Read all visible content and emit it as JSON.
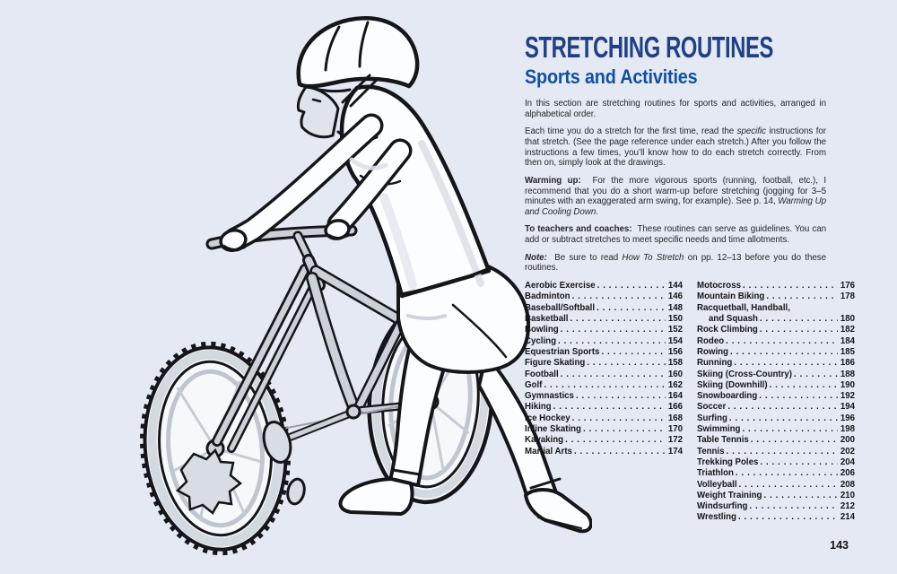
{
  "theme": {
    "background": "#e5e9f3",
    "title_color": "#1d4086",
    "subtitle_color": "#10509f",
    "body_text_color": "#26262b",
    "index_text_color": "#15151a",
    "line_art_color": "#15151a",
    "page_number_color": "#111114"
  },
  "page": {
    "number": "143"
  },
  "header": {
    "title": "STRETCHING ROUTINES",
    "subtitle": "Sports and Activities"
  },
  "intro": {
    "paragraphs": [
      {
        "runs": [
          {
            "t": "In this section are stretching routines for sports and activities, arranged in alphabetical order."
          }
        ]
      },
      {
        "runs": [
          {
            "t": "Each time you do a stretch for the first time, read the "
          },
          {
            "t": "specific",
            "style": "italic"
          },
          {
            "t": " instructions for that stretch. (See the page reference under each stretch.) After you follow the instructions a few times, you’ll know how to do each stretch correctly. From then on, simply look at the drawings."
          }
        ]
      },
      {
        "runs": [
          {
            "t": "Warming up:",
            "style": "bold"
          },
          {
            "t": "  For the more vigorous sports (running, football, etc.), I recommend that you do a short warm-up before stretching (jogging for 3–5 minutes with an exaggerated arm swing, for example). See p. 14, "
          },
          {
            "t": "Warming Up and Cooling Down",
            "style": "italic"
          },
          {
            "t": "."
          }
        ]
      },
      {
        "runs": [
          {
            "t": "To teachers and coaches:",
            "style": "bold"
          },
          {
            "t": "  These routines can serve as guidelines. You can add or subtract stretches to meet specific needs and time allotments."
          }
        ]
      },
      {
        "runs": [
          {
            "t": "Note:",
            "style": "bold-italic"
          },
          {
            "t": "  Be sure to read "
          },
          {
            "t": "How To Stretch",
            "style": "italic"
          },
          {
            "t": " on pp. 12–13 before you do these routines."
          }
        ]
      }
    ]
  },
  "index": {
    "left": [
      {
        "label": "Aerobic Exercise",
        "page": "144"
      },
      {
        "label": "Badminton",
        "page": "146"
      },
      {
        "label": "Baseball/Softball",
        "page": "148"
      },
      {
        "label": "Basketball",
        "page": "150"
      },
      {
        "label": "Bowling",
        "page": "152"
      },
      {
        "label": "Cycling",
        "page": "154"
      },
      {
        "label": "Equestrian Sports",
        "page": "156"
      },
      {
        "label": "Figure Skating",
        "page": "158"
      },
      {
        "label": "Football",
        "page": "160"
      },
      {
        "label": "Golf",
        "page": "162"
      },
      {
        "label": "Gymnastics",
        "page": "164"
      },
      {
        "label": "Hiking",
        "page": "166"
      },
      {
        "label": "Ice Hockey",
        "page": "168"
      },
      {
        "label": "Inline Skating",
        "page": "170"
      },
      {
        "label": "Kayaking",
        "page": "172"
      },
      {
        "label": "Martial Arts",
        "page": "174"
      }
    ],
    "right": [
      {
        "label": "Motocross",
        "page": "176"
      },
      {
        "label": "Mountain Biking",
        "page": "178"
      },
      {
        "label": "Racquetball, Handball,",
        "page": ""
      },
      {
        "label": "and Squash",
        "page": "180",
        "indent": true
      },
      {
        "label": "Rock Climbing",
        "page": "182"
      },
      {
        "label": "Rodeo",
        "page": "184"
      },
      {
        "label": "Rowing",
        "page": "185"
      },
      {
        "label": "Running",
        "page": "186"
      },
      {
        "label": "Skiing (Cross-Country)",
        "page": "188"
      },
      {
        "label": "Skiing (Downhill)",
        "page": "190"
      },
      {
        "label": "Snowboarding",
        "page": "192"
      },
      {
        "label": "Soccer",
        "page": "194"
      },
      {
        "label": "Surfing",
        "page": "196"
      },
      {
        "label": "Swimming",
        "page": "198"
      },
      {
        "label": "Table Tennis",
        "page": "200"
      },
      {
        "label": "Tennis",
        "page": "202"
      },
      {
        "label": "Trekking Poles",
        "page": "204"
      },
      {
        "label": "Triathlon",
        "page": "206"
      },
      {
        "label": "Volleyball",
        "page": "208"
      },
      {
        "label": "Weight Training",
        "page": "210"
      },
      {
        "label": "Windsurfing",
        "page": "212"
      },
      {
        "label": "Wrestling",
        "page": "214"
      }
    ]
  },
  "illustration": {
    "description": "Black-outline drawing with gray shading of a cyclist in helmet, shorts and t-shirt leaning forward on the handlebars of a mountain bike, back leg extended in a calf stretch"
  }
}
